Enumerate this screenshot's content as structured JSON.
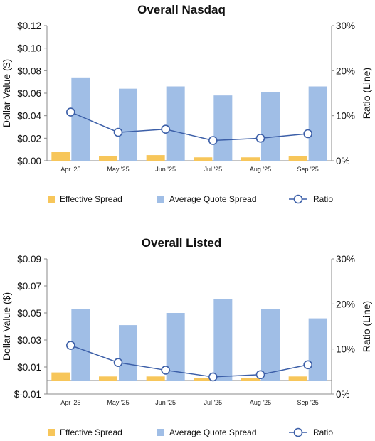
{
  "colors": {
    "effective": "#F7C65A",
    "quote": "#A0BEE6",
    "ratio": "#3C5FA8",
    "axis": "#888888"
  },
  "chart_data": [
    {
      "type": "bar",
      "title": "Overall Nasdaq",
      "categories": [
        "Apr '25",
        "May '25",
        "Jun '25",
        "Jul '25",
        "Aug '25",
        "Sep '25"
      ],
      "ylabel": "Dollar Value ($)",
      "y2label": "Ratio (Line)",
      "ylim": [
        0,
        0.12
      ],
      "y2lim": [
        0,
        30
      ],
      "yticks": [
        0,
        0.02,
        0.04,
        0.06,
        0.08,
        0.1,
        0.12
      ],
      "ytick_labels": [
        "$0.00",
        "$0.02",
        "$0.04",
        "$0.06",
        "$0.08",
        "$0.10",
        "$0.12"
      ],
      "y2ticks": [
        0,
        10,
        20,
        30
      ],
      "y2tick_labels": [
        "0%",
        "10%",
        "20%",
        "30%"
      ],
      "series": [
        {
          "name": "Effective Spread",
          "kind": "bar",
          "axis": "left",
          "values": [
            0.008,
            0.004,
            0.005,
            0.003,
            0.003,
            0.004
          ]
        },
        {
          "name": "Average Quote Spread",
          "kind": "bar",
          "axis": "left",
          "values": [
            0.074,
            0.064,
            0.066,
            0.058,
            0.061,
            0.066
          ]
        },
        {
          "name": "Ratio",
          "kind": "line",
          "axis": "right",
          "values": [
            10.8,
            6.3,
            7.0,
            4.5,
            5.0,
            6.0
          ]
        }
      ],
      "legend": [
        "Effective Spread",
        "Average Quote Spread",
        "Ratio"
      ],
      "legend_position": "bottom"
    },
    {
      "type": "bar",
      "title": "Overall Listed",
      "categories": [
        "Apr '25",
        "May '25",
        "Jun '25",
        "Jul '25",
        "Aug '25",
        "Sep '25"
      ],
      "ylabel": "Dollar Value ($)",
      "y2label": "Ratio (Line)",
      "ylim": [
        -0.01,
        0.09
      ],
      "y2lim": [
        0,
        30
      ],
      "yticks": [
        -0.01,
        0.01,
        0.03,
        0.05,
        0.07,
        0.09
      ],
      "ytick_labels": [
        "$-0.01",
        "$0.01",
        "$0.03",
        "$0.05",
        "$0.07",
        "$0.09"
      ],
      "y2ticks": [
        0,
        10,
        20,
        30
      ],
      "y2tick_labels": [
        "0%",
        "10%",
        "20%",
        "30%"
      ],
      "series": [
        {
          "name": "Effective Spread",
          "kind": "bar",
          "axis": "left",
          "values": [
            0.006,
            0.003,
            0.003,
            0.002,
            0.002,
            0.003
          ]
        },
        {
          "name": "Average Quote Spread",
          "kind": "bar",
          "axis": "left",
          "values": [
            0.053,
            0.041,
            0.05,
            0.06,
            0.053,
            0.046
          ]
        },
        {
          "name": "Ratio",
          "kind": "line",
          "axis": "right",
          "values": [
            10.8,
            7.0,
            5.3,
            3.8,
            4.3,
            6.5
          ]
        }
      ],
      "legend": [
        "Effective Spread",
        "Average Quote Spread",
        "Ratio"
      ],
      "legend_position": "bottom"
    }
  ]
}
